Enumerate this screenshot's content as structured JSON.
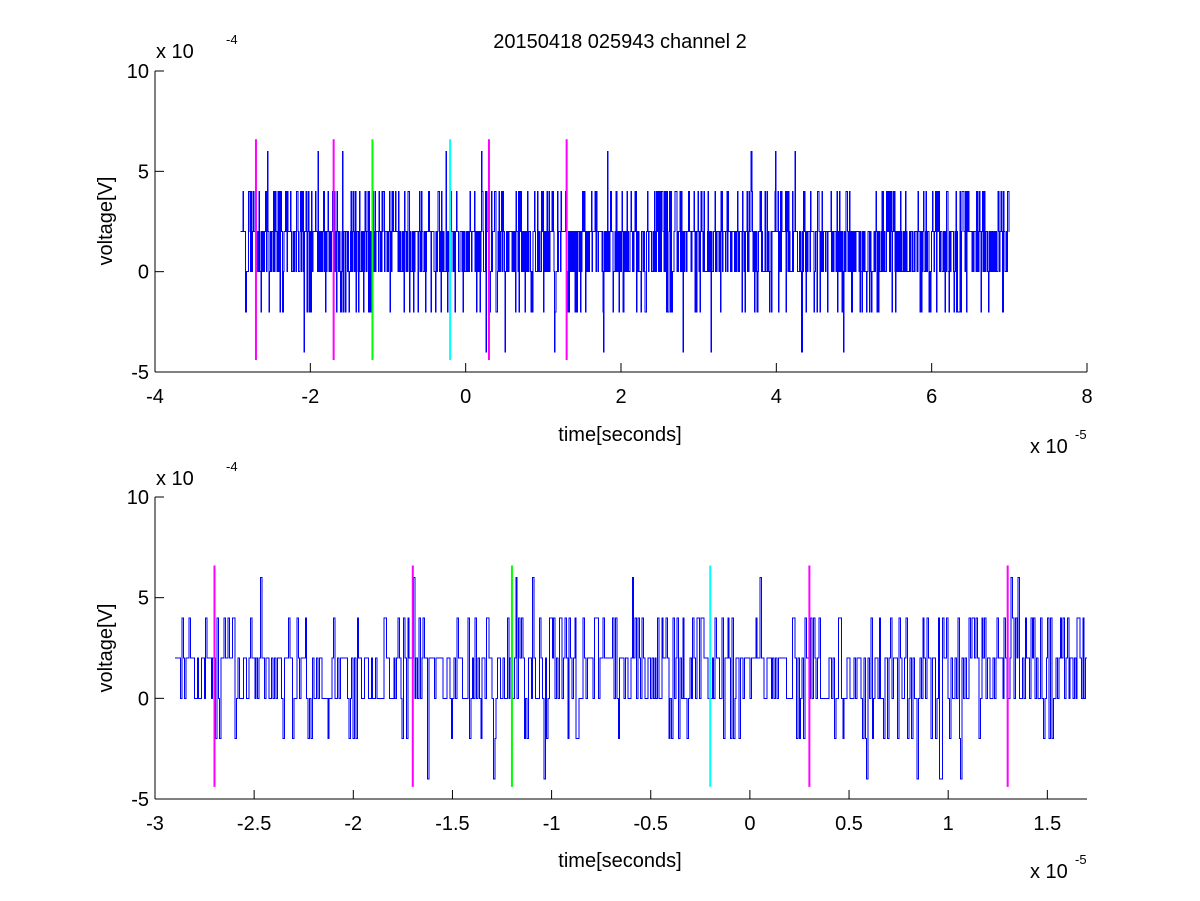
{
  "title": "20150418 025943 channel 2",
  "colors": {
    "signal": "#0000ff",
    "magenta": "#ff00ff",
    "green": "#00ff00",
    "cyan": "#00ffff",
    "axes": "#000000"
  },
  "chart_data": [
    {
      "type": "line",
      "xlabel": "time[seconds]",
      "ylabel": "voltage[V]",
      "xlim": [
        -4,
        8
      ],
      "ylim": [
        -5,
        10
      ],
      "xticks": [
        "-4",
        "-2",
        "0",
        "2",
        "4",
        "6",
        "8"
      ],
      "xtick_values": [
        -4,
        -2,
        0,
        2,
        4,
        6,
        8
      ],
      "yticks": [
        "-5",
        "0",
        "5",
        "10"
      ],
      "ytick_values": [
        -5,
        0,
        5,
        10
      ],
      "x_exponent": {
        "base": "x 10",
        "power": "-5"
      },
      "y_exponent": {
        "base": "x 10",
        "power": "-4"
      },
      "series": [
        {
          "color": "#0000ff",
          "x_range": [
            -2.9,
            7.0
          ],
          "y_range": [
            -4,
            6
          ],
          "seed": 7
        }
      ],
      "markers": [
        {
          "x": -2.7,
          "color": "#ff00ff",
          "y_range": [
            -4.4,
            6.6
          ]
        },
        {
          "x": -1.7,
          "color": "#ff00ff",
          "y_range": [
            -4.4,
            6.6
          ]
        },
        {
          "x": -1.2,
          "color": "#00ff00",
          "y_range": [
            -4.4,
            6.6
          ]
        },
        {
          "x": -0.2,
          "color": "#00ffff",
          "y_range": [
            -4.4,
            6.6
          ]
        },
        {
          "x": 0.3,
          "color": "#ff00ff",
          "y_range": [
            -4.4,
            6.6
          ]
        },
        {
          "x": 1.3,
          "color": "#ff00ff",
          "y_range": [
            -4.4,
            6.6
          ]
        }
      ]
    },
    {
      "type": "line",
      "xlabel": "time[seconds]",
      "ylabel": "voltage[V]",
      "xlim": [
        -3.0,
        1.7
      ],
      "ylim": [
        -5,
        10
      ],
      "xticks": [
        "-3",
        "-2.5",
        "-2",
        "-1.5",
        "-1",
        "-0.5",
        "0",
        "0.5",
        "1",
        "1.5"
      ],
      "xtick_values": [
        -3,
        -2.5,
        -2,
        -1.5,
        -1,
        -0.5,
        0,
        0.5,
        1,
        1.5
      ],
      "yticks": [
        "-5",
        "0",
        "5",
        "10"
      ],
      "ytick_values": [
        -5,
        0,
        5,
        10
      ],
      "x_exponent": {
        "base": "x 10",
        "power": "-5"
      },
      "y_exponent": {
        "base": "x 10",
        "power": "-4"
      },
      "series": [
        {
          "color": "#0000ff",
          "x_range": [
            -2.9,
            1.7
          ],
          "y_range": [
            -4,
            6
          ],
          "seed": 11
        }
      ],
      "markers": [
        {
          "x": -2.7,
          "color": "#ff00ff",
          "y_range": [
            -4.4,
            6.6
          ]
        },
        {
          "x": -1.7,
          "color": "#ff00ff",
          "y_range": [
            -4.4,
            6.6
          ]
        },
        {
          "x": -1.2,
          "color": "#00ff00",
          "y_range": [
            -4.4,
            6.6
          ]
        },
        {
          "x": -0.2,
          "color": "#00ffff",
          "y_range": [
            -4.4,
            6.6
          ]
        },
        {
          "x": 0.3,
          "color": "#ff00ff",
          "y_range": [
            -4.4,
            6.6
          ]
        },
        {
          "x": 1.3,
          "color": "#ff00ff",
          "y_range": [
            -4.4,
            6.6
          ]
        }
      ]
    }
  ]
}
